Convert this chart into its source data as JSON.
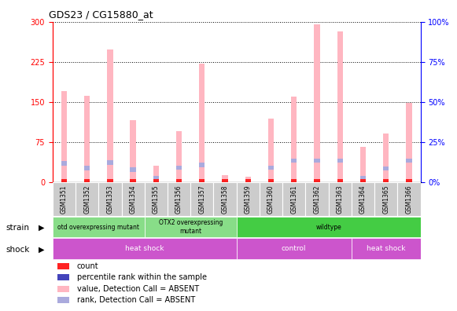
{
  "title": "GDS23 / CG15880_at",
  "samples": [
    "GSM1351",
    "GSM1352",
    "GSM1353",
    "GSM1354",
    "GSM1355",
    "GSM1356",
    "GSM1357",
    "GSM1358",
    "GSM1359",
    "GSM1360",
    "GSM1361",
    "GSM1362",
    "GSM1363",
    "GSM1364",
    "GSM1365",
    "GSM1366"
  ],
  "pink_bars": [
    170,
    162,
    248,
    115,
    30,
    95,
    222,
    13,
    10,
    118,
    160,
    295,
    282,
    65,
    90,
    148
  ],
  "blue_marker_vals": [
    35,
    26,
    36,
    23,
    8,
    27,
    32,
    2,
    2,
    27,
    40,
    40,
    40,
    7,
    25,
    40
  ],
  "ylim_left": [
    0,
    300
  ],
  "ylim_right": [
    0,
    100
  ],
  "yticks_left": [
    0,
    75,
    150,
    225,
    300
  ],
  "yticks_right": [
    0,
    25,
    50,
    75,
    100
  ],
  "bar_width": 0.25,
  "pink_color": "#FFB6C1",
  "light_blue_color": "#AAAADD",
  "red_color": "#FF2222",
  "blue_color": "#4444BB",
  "bg_color": "#FFFFFF"
}
